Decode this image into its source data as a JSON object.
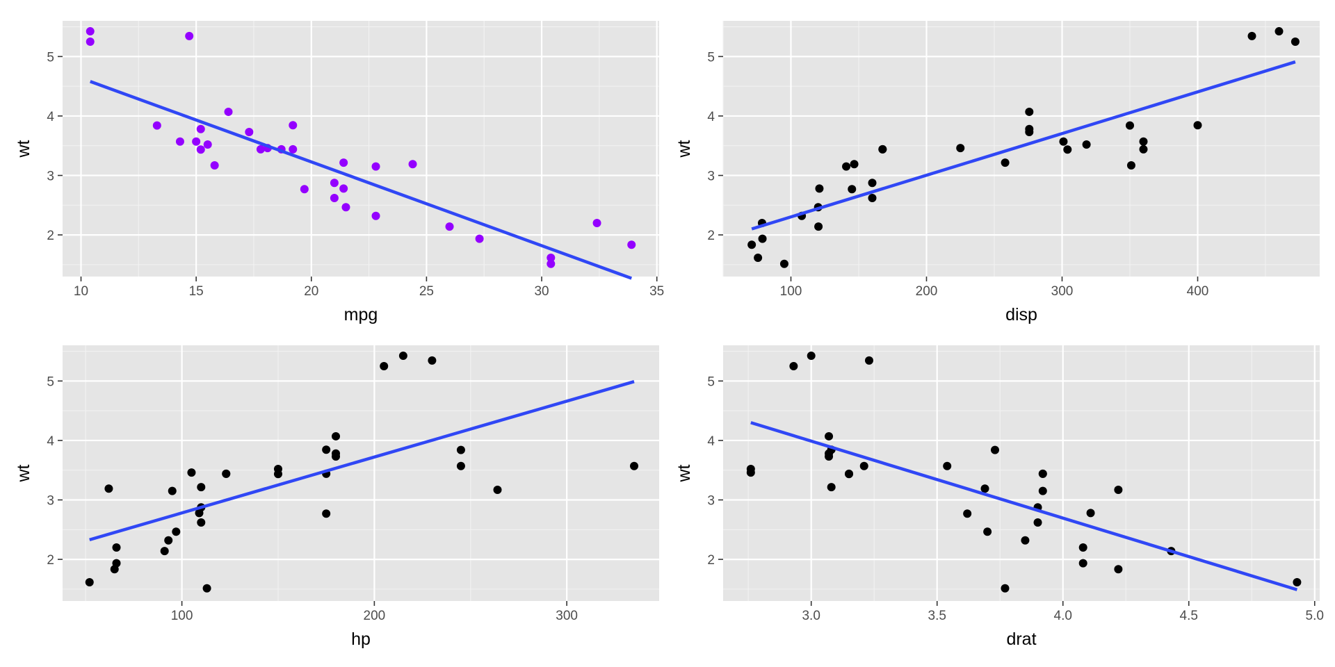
{
  "chart_data": [
    {
      "type": "scatter",
      "xlabel": "mpg",
      "ylabel": "wt",
      "xlim": [
        9.2,
        35.1
      ],
      "ylim": [
        1.3,
        5.6
      ],
      "xticks": [
        10,
        15,
        20,
        25,
        30,
        35
      ],
      "yticks": [
        2,
        3,
        4,
        5
      ],
      "grid": true,
      "point_color": "#9400ff",
      "line_color": "#3047f5",
      "points": [
        [
          21,
          2.62
        ],
        [
          21,
          2.875
        ],
        [
          22.8,
          2.32
        ],
        [
          21.4,
          3.215
        ],
        [
          18.7,
          3.44
        ],
        [
          18.1,
          3.46
        ],
        [
          14.3,
          3.57
        ],
        [
          24.4,
          3.19
        ],
        [
          22.8,
          3.15
        ],
        [
          19.2,
          3.44
        ],
        [
          17.8,
          3.44
        ],
        [
          16.4,
          4.07
        ],
        [
          17.3,
          3.73
        ],
        [
          15.2,
          3.78
        ],
        [
          10.4,
          5.25
        ],
        [
          10.4,
          5.424
        ],
        [
          14.7,
          5.345
        ],
        [
          32.4,
          2.2
        ],
        [
          30.4,
          1.615
        ],
        [
          33.9,
          1.835
        ],
        [
          21.5,
          2.465
        ],
        [
          15.5,
          3.52
        ],
        [
          15.2,
          3.435
        ],
        [
          13.3,
          3.84
        ],
        [
          19.2,
          3.845
        ],
        [
          27.3,
          1.935
        ],
        [
          26,
          2.14
        ],
        [
          30.4,
          1.513
        ],
        [
          15.8,
          3.17
        ],
        [
          19.7,
          2.77
        ],
        [
          15,
          3.57
        ],
        [
          21.4,
          2.78
        ]
      ],
      "fit_line": [
        [
          10.4,
          4.58
        ],
        [
          33.9,
          1.27
        ]
      ]
    },
    {
      "type": "scatter",
      "xlabel": "disp",
      "ylabel": "wt",
      "xlim": [
        50,
        490
      ],
      "ylim": [
        1.3,
        5.6
      ],
      "xticks": [
        100,
        200,
        300,
        400
      ],
      "yticks": [
        2,
        3,
        4,
        5
      ],
      "grid": true,
      "point_color": "#000000",
      "line_color": "#3047f5",
      "points": [
        [
          160,
          2.62
        ],
        [
          160,
          2.875
        ],
        [
          108,
          2.32
        ],
        [
          258,
          3.215
        ],
        [
          360,
          3.44
        ],
        [
          225,
          3.46
        ],
        [
          360,
          3.57
        ],
        [
          146.7,
          3.19
        ],
        [
          140.8,
          3.15
        ],
        [
          167.6,
          3.44
        ],
        [
          167.6,
          3.44
        ],
        [
          275.8,
          4.07
        ],
        [
          275.8,
          3.73
        ],
        [
          275.8,
          3.78
        ],
        [
          472,
          5.25
        ],
        [
          460,
          5.424
        ],
        [
          440,
          5.345
        ],
        [
          78.7,
          2.2
        ],
        [
          75.7,
          1.615
        ],
        [
          71.1,
          1.835
        ],
        [
          120.1,
          2.465
        ],
        [
          318,
          3.52
        ],
        [
          304,
          3.435
        ],
        [
          350,
          3.84
        ],
        [
          400,
          3.845
        ],
        [
          79,
          1.935
        ],
        [
          120.3,
          2.14
        ],
        [
          95.1,
          1.513
        ],
        [
          351,
          3.17
        ],
        [
          145,
          2.77
        ],
        [
          301,
          3.57
        ],
        [
          121,
          2.78
        ]
      ],
      "fit_line": [
        [
          71.1,
          2.1
        ],
        [
          472,
          4.91
        ]
      ]
    },
    {
      "type": "scatter",
      "xlabel": "hp",
      "ylabel": "wt",
      "xlim": [
        38,
        348
      ],
      "ylim": [
        1.3,
        5.6
      ],
      "xticks": [
        100,
        200,
        300
      ],
      "yticks": [
        2,
        3,
        4,
        5
      ],
      "grid": true,
      "point_color": "#000000",
      "line_color": "#3047f5",
      "points": [
        [
          110,
          2.62
        ],
        [
          110,
          2.875
        ],
        [
          93,
          2.32
        ],
        [
          110,
          3.215
        ],
        [
          175,
          3.44
        ],
        [
          105,
          3.46
        ],
        [
          245,
          3.57
        ],
        [
          62,
          3.19
        ],
        [
          95,
          3.15
        ],
        [
          123,
          3.44
        ],
        [
          123,
          3.44
        ],
        [
          180,
          4.07
        ],
        [
          180,
          3.73
        ],
        [
          180,
          3.78
        ],
        [
          205,
          5.25
        ],
        [
          215,
          5.424
        ],
        [
          230,
          5.345
        ],
        [
          66,
          2.2
        ],
        [
          52,
          1.615
        ],
        [
          65,
          1.835
        ],
        [
          97,
          2.465
        ],
        [
          150,
          3.52
        ],
        [
          150,
          3.435
        ],
        [
          245,
          3.84
        ],
        [
          175,
          3.845
        ],
        [
          66,
          1.935
        ],
        [
          91,
          2.14
        ],
        [
          113,
          1.513
        ],
        [
          264,
          3.17
        ],
        [
          175,
          2.77
        ],
        [
          335,
          3.57
        ],
        [
          109,
          2.78
        ]
      ],
      "fit_line": [
        [
          52,
          2.33
        ],
        [
          335,
          4.99
        ]
      ]
    },
    {
      "type": "scatter",
      "xlabel": "drat",
      "ylabel": "wt",
      "xlim": [
        2.65,
        5.02
      ],
      "ylim": [
        1.3,
        5.6
      ],
      "xticks": [
        3.0,
        3.5,
        4.0,
        4.5,
        5.0
      ],
      "xtick_labels": [
        "3.0",
        "3.5",
        "4.0",
        "4.5",
        "5.0"
      ],
      "yticks": [
        2,
        3,
        4,
        5
      ],
      "grid": true,
      "point_color": "#000000",
      "line_color": "#3047f5",
      "points": [
        [
          3.9,
          2.62
        ],
        [
          3.9,
          2.875
        ],
        [
          3.85,
          2.32
        ],
        [
          3.08,
          3.215
        ],
        [
          3.15,
          3.44
        ],
        [
          2.76,
          3.46
        ],
        [
          3.21,
          3.57
        ],
        [
          3.69,
          3.19
        ],
        [
          3.92,
          3.15
        ],
        [
          3.92,
          3.44
        ],
        [
          3.92,
          3.44
        ],
        [
          3.07,
          4.07
        ],
        [
          3.07,
          3.73
        ],
        [
          3.07,
          3.78
        ],
        [
          2.93,
          5.25
        ],
        [
          3,
          5.424
        ],
        [
          3.23,
          5.345
        ],
        [
          4.08,
          2.2
        ],
        [
          4.93,
          1.615
        ],
        [
          4.22,
          1.835
        ],
        [
          3.7,
          2.465
        ],
        [
          2.76,
          3.52
        ],
        [
          3.15,
          3.435
        ],
        [
          3.73,
          3.84
        ],
        [
          3.08,
          3.845
        ],
        [
          4.08,
          1.935
        ],
        [
          4.43,
          2.14
        ],
        [
          3.77,
          1.513
        ],
        [
          4.22,
          3.17
        ],
        [
          3.62,
          2.77
        ],
        [
          3.54,
          3.57
        ],
        [
          4.11,
          2.78
        ]
      ],
      "fit_line": [
        [
          2.76,
          4.3
        ],
        [
          4.93,
          1.49
        ]
      ]
    }
  ]
}
